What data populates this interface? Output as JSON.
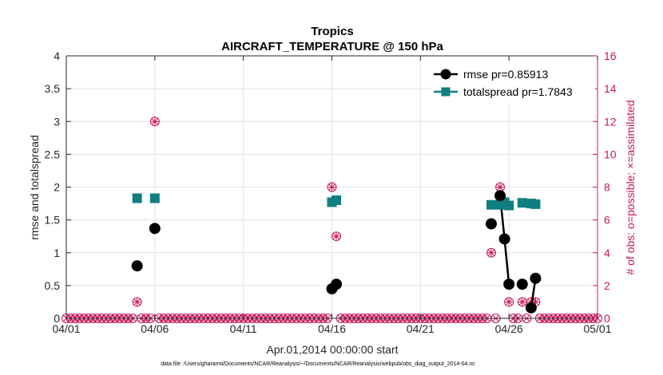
{
  "chart_data": {
    "type": "scatter",
    "title": "Tropics",
    "subtitle": "AIRCRAFT_TEMPERATURE @ 150 hPa",
    "xlabel": "Apr.01,2014 00:00:00 start",
    "ylabel": "rmse and totalspread",
    "y2label": "# of obs: o=possible; ×=assimilated",
    "footnote": "data file: /Users/gharamti/Documents/NCAR/Reanalysis/~/Documents/NCAR/Reanalysis/webpub/obs_diag_output_2014-04.nc",
    "xlim": [
      1,
      31
    ],
    "ylim": [
      0,
      4
    ],
    "y2lim": [
      0,
      16
    ],
    "xticks": [
      1,
      6,
      11,
      16,
      21,
      26,
      31
    ],
    "xtick_labels": [
      "04/01",
      "04/06",
      "04/11",
      "04/16",
      "04/21",
      "04/26",
      "05/01"
    ],
    "yticks": [
      0,
      0.5,
      1,
      1.5,
      2,
      2.5,
      3,
      3.5,
      4
    ],
    "ytick_labels": [
      "0",
      "0.5",
      "1",
      "1.5",
      "2",
      "2.5",
      "3",
      "3.5",
      "4"
    ],
    "y2ticks": [
      0,
      2,
      4,
      6,
      8,
      10,
      12,
      14,
      16
    ],
    "y2tick_labels": [
      "0",
      "2",
      "4",
      "6",
      "8",
      "10",
      "12",
      "14",
      "16"
    ],
    "legend_position": "top-right",
    "series": [
      {
        "name": "rmse",
        "legend": "rmse pr=0.85913",
        "color": "#000000",
        "marker": "circle",
        "points": [
          [
            5.0,
            0.8
          ],
          [
            5.5,
            null
          ],
          [
            6.0,
            1.37
          ],
          [
            16.0,
            0.45
          ],
          [
            16.25,
            0.52
          ],
          [
            25.0,
            1.44
          ],
          [
            25.5,
            1.87
          ],
          [
            25.75,
            1.21
          ],
          [
            26.0,
            0.52
          ],
          [
            26.5,
            null
          ],
          [
            26.75,
            0.52
          ],
          [
            27.25,
            0.16
          ],
          [
            27.5,
            0.61
          ]
        ],
        "segments": [
          [
            [
              25.5,
              1.87
            ],
            [
              25.75,
              1.21
            ],
            [
              26.0,
              0.52
            ]
          ],
          [
            [
              27.25,
              0.16
            ],
            [
              27.5,
              0.61
            ]
          ]
        ]
      },
      {
        "name": "totalspread",
        "legend": "totalspread pr=1.7843",
        "color": "#0f7f7f",
        "marker": "square",
        "points": [
          [
            5.0,
            1.83
          ],
          [
            6.0,
            1.83
          ],
          [
            16.0,
            1.77
          ],
          [
            16.25,
            1.8
          ],
          [
            25.0,
            1.73
          ],
          [
            25.5,
            1.73
          ],
          [
            25.75,
            1.77
          ],
          [
            26.0,
            1.72
          ],
          [
            26.75,
            1.76
          ],
          [
            27.25,
            1.75
          ],
          [
            27.5,
            1.74
          ]
        ],
        "segments": [
          [
            [
              25.5,
              1.73
            ],
            [
              25.75,
              1.77
            ],
            [
              26.0,
              1.72
            ]
          ],
          [
            [
              27.25,
              1.75
            ],
            [
              27.5,
              1.74
            ]
          ]
        ]
      },
      {
        "name": "obs_possible",
        "axis": "right",
        "color": "#c8165a",
        "marker": "circle-open",
        "nonzero": [
          [
            5.0,
            1
          ],
          [
            6.0,
            12
          ],
          [
            16.0,
            8
          ],
          [
            16.25,
            5
          ],
          [
            25.0,
            4
          ],
          [
            25.5,
            8
          ],
          [
            25.75,
            7
          ],
          [
            26.0,
            1
          ],
          [
            26.75,
            1
          ],
          [
            27.25,
            1
          ],
          [
            27.5,
            1
          ]
        ]
      },
      {
        "name": "obs_assimilated",
        "axis": "right",
        "color": "#c8165a",
        "marker": "asterisk",
        "nonzero": [
          [
            5.0,
            1
          ],
          [
            6.0,
            12
          ],
          [
            16.0,
            8
          ],
          [
            16.25,
            5
          ],
          [
            25.0,
            4
          ],
          [
            25.5,
            8
          ],
          [
            25.75,
            7
          ],
          [
            26.0,
            1
          ],
          [
            26.75,
            1
          ],
          [
            27.25,
            1
          ],
          [
            27.5,
            1
          ]
        ]
      }
    ]
  }
}
